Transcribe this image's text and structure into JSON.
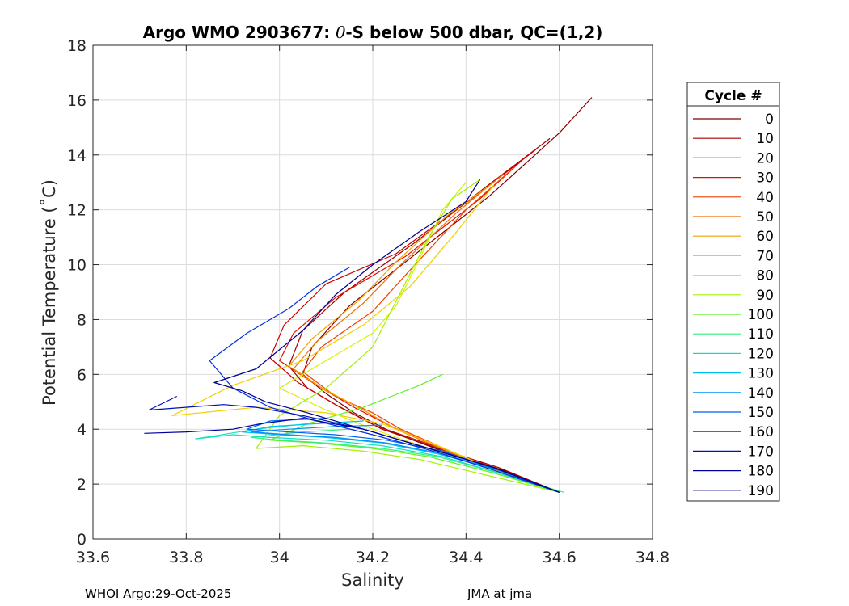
{
  "chart_data": {
    "type": "line",
    "title_prefix": "Argo WMO 2903677: ",
    "title_theta": "θ",
    "title_suffix": "-S below 500 dbar,  QC=(1,2)",
    "xlabel": "Salinity",
    "ylabel": "Potential Temperature (˚C)",
    "xlim": [
      33.6,
      34.8
    ],
    "ylim": [
      0,
      18
    ],
    "xticks": [
      "33.6",
      "33.8",
      "34",
      "34.2",
      "34.4",
      "34.6",
      "34.8"
    ],
    "yticks": [
      "0",
      "2",
      "4",
      "6",
      "8",
      "10",
      "12",
      "14",
      "16",
      "18"
    ],
    "grid": true,
    "legend_title": "Cycle #",
    "legend_position": "right-outside",
    "legend": [
      {
        "label": "0",
        "color": "#800000"
      },
      {
        "label": "10",
        "color": "#a00000"
      },
      {
        "label": "20",
        "color": "#c80000"
      },
      {
        "label": "30",
        "color": "#e01000"
      },
      {
        "label": "40",
        "color": "#f04000"
      },
      {
        "label": "50",
        "color": "#f07000"
      },
      {
        "label": "60",
        "color": "#f0a000"
      },
      {
        "label": "70",
        "color": "#f0d000"
      },
      {
        "label": "80",
        "color": "#d8f000"
      },
      {
        "label": "90",
        "color": "#a0f000"
      },
      {
        "label": "100",
        "color": "#60f020"
      },
      {
        "label": "110",
        "color": "#30f080"
      },
      {
        "label": "120",
        "color": "#10e0c0"
      },
      {
        "label": "130",
        "color": "#00c0f0"
      },
      {
        "label": "140",
        "color": "#0090f0"
      },
      {
        "label": "150",
        "color": "#0060f0"
      },
      {
        "label": "160",
        "color": "#0030e0"
      },
      {
        "label": "170",
        "color": "#0010c0"
      },
      {
        "label": "180",
        "color": "#0000a0"
      },
      {
        "label": "190",
        "color": "#000090"
      }
    ],
    "series": [
      {
        "name": "0",
        "color": "#800000",
        "x": [
          34.6,
          34.48,
          34.35,
          34.24,
          34.16,
          34.1,
          34.05,
          34.07,
          34.15,
          34.3,
          34.45,
          34.6,
          34.67
        ],
        "y": [
          1.7,
          2.5,
          3.2,
          3.9,
          4.6,
          5.3,
          6.0,
          7.0,
          8.5,
          10.5,
          12.5,
          14.8,
          16.1
        ]
      },
      {
        "name": "10",
        "color": "#a00000",
        "x": [
          34.6,
          34.47,
          34.34,
          34.22,
          34.13,
          34.06,
          34.02,
          34.05,
          34.14,
          34.29,
          34.44,
          34.58
        ],
        "y": [
          1.7,
          2.6,
          3.3,
          4.0,
          4.8,
          5.5,
          6.3,
          7.6,
          9.0,
          10.8,
          12.8,
          14.6
        ]
      },
      {
        "name": "20",
        "color": "#c80000",
        "x": [
          34.6,
          34.46,
          34.33,
          34.21,
          34.12,
          34.04,
          33.98,
          34.01,
          34.1,
          34.25,
          34.42,
          34.55
        ],
        "y": [
          1.7,
          2.6,
          3.4,
          4.1,
          4.9,
          5.7,
          6.6,
          7.8,
          9.3,
          10.4,
          12.5,
          14.2
        ]
      },
      {
        "name": "30",
        "color": "#e01000",
        "x": [
          34.6,
          34.47,
          34.35,
          34.24,
          34.16,
          34.08,
          34.0,
          34.03,
          34.12,
          34.27,
          34.43,
          34.52
        ],
        "y": [
          1.7,
          2.5,
          3.3,
          4.1,
          4.8,
          5.6,
          6.5,
          7.5,
          8.8,
          10.3,
          12.4,
          13.8
        ]
      },
      {
        "name": "40",
        "color": "#f04000",
        "x": [
          34.6,
          34.48,
          34.38,
          34.26,
          34.2,
          34.12,
          34.05,
          34.09,
          34.2,
          34.28,
          34.4,
          34.5
        ],
        "y": [
          1.7,
          2.4,
          3.1,
          4.0,
          4.6,
          5.2,
          6.1,
          7.0,
          8.3,
          9.8,
          12.0,
          13.5
        ]
      },
      {
        "name": "50",
        "color": "#f07000",
        "x": [
          34.6,
          34.47,
          34.36,
          34.25,
          34.18,
          34.1,
          34.03,
          34.08,
          34.18,
          34.26,
          34.38,
          34.48
        ],
        "y": [
          1.7,
          2.5,
          3.2,
          4.0,
          4.7,
          5.4,
          6.2,
          7.2,
          8.6,
          10.0,
          11.9,
          13.3
        ]
      },
      {
        "name": "60",
        "color": "#f0a000",
        "x": [
          34.6,
          34.46,
          34.35,
          34.24,
          34.17,
          34.09,
          34.02,
          34.07,
          34.17,
          34.25,
          34.36,
          34.46
        ],
        "y": [
          1.7,
          2.5,
          3.3,
          4.1,
          4.8,
          5.5,
          6.3,
          7.3,
          8.7,
          10.1,
          11.8,
          13.0
        ]
      },
      {
        "name": "70",
        "color": "#f0d000",
        "x": [
          34.6,
          34.45,
          34.34,
          34.22,
          34.1,
          33.95,
          33.77,
          33.9,
          34.05,
          34.18,
          34.28,
          34.38,
          34.46
        ],
        "y": [
          1.7,
          2.6,
          3.4,
          4.2,
          4.6,
          4.8,
          4.5,
          5.6,
          6.5,
          7.8,
          9.2,
          11.2,
          12.9
        ]
      },
      {
        "name": "80",
        "color": "#d8f000",
        "x": [
          34.6,
          34.44,
          34.32,
          34.2,
          34.1,
          34.0,
          34.08,
          34.2,
          34.25,
          34.3,
          34.35,
          34.4
        ],
        "y": [
          1.7,
          2.6,
          3.3,
          4.0,
          4.7,
          5.5,
          6.3,
          7.5,
          8.5,
          10.2,
          12.0,
          13.0
        ]
      },
      {
        "name": "90",
        "color": "#a0f000",
        "x": [
          34.6,
          34.45,
          34.3,
          34.18,
          34.05,
          33.95,
          34.0,
          34.1,
          34.2,
          34.26,
          34.32,
          34.37,
          34.43
        ],
        "y": [
          1.7,
          2.3,
          2.9,
          3.2,
          3.4,
          3.3,
          4.5,
          5.5,
          7.0,
          9.0,
          11.0,
          12.4,
          13.1
        ]
      },
      {
        "name": "100",
        "color": "#60f020",
        "x": [
          34.6,
          34.46,
          34.32,
          34.2,
          34.08,
          33.98,
          34.06,
          34.18,
          34.24,
          34.3,
          34.35
        ],
        "y": [
          1.7,
          2.4,
          3.0,
          3.3,
          3.5,
          3.6,
          4.2,
          4.8,
          5.2,
          5.6,
          6.0
        ]
      },
      {
        "name": "110",
        "color": "#30f080",
        "x": [
          34.61,
          34.47,
          34.34,
          34.22,
          34.1,
          34.0,
          33.94,
          34.05,
          34.15
        ],
        "y": [
          1.7,
          2.4,
          3.0,
          3.3,
          3.5,
          3.6,
          3.7,
          3.9,
          4.0
        ]
      },
      {
        "name": "120",
        "color": "#10e0c0",
        "x": [
          34.6,
          34.47,
          34.35,
          34.22,
          34.1,
          33.98,
          33.9,
          33.82,
          33.95,
          34.06
        ],
        "y": [
          1.7,
          2.4,
          3.0,
          3.4,
          3.6,
          3.7,
          3.8,
          3.65,
          4.0,
          4.2
        ]
      },
      {
        "name": "130",
        "color": "#00c0f0",
        "x": [
          34.6,
          34.47,
          34.34,
          34.22,
          34.1,
          34.0,
          33.92,
          33.98,
          34.08,
          34.18
        ],
        "y": [
          1.7,
          2.5,
          3.1,
          3.5,
          3.7,
          3.8,
          3.9,
          4.1,
          4.2,
          4.3
        ]
      },
      {
        "name": "140",
        "color": "#0090f0",
        "x": [
          34.6,
          34.47,
          34.35,
          34.23,
          34.12,
          34.02,
          33.94,
          34.02,
          34.12,
          34.22
        ],
        "y": [
          1.7,
          2.5,
          3.1,
          3.5,
          3.7,
          3.8,
          3.9,
          4.0,
          4.1,
          4.15
        ]
      },
      {
        "name": "150",
        "color": "#0060f0",
        "x": [
          34.6,
          34.47,
          34.35,
          34.23,
          34.12,
          34.02,
          33.93,
          33.98,
          34.1
        ],
        "y": [
          1.7,
          2.5,
          3.2,
          3.6,
          3.8,
          3.9,
          4.0,
          4.3,
          4.4
        ]
      },
      {
        "name": "160",
        "color": "#0030e0",
        "x": [
          34.6,
          34.46,
          34.33,
          34.2,
          34.08,
          33.98,
          33.9,
          33.85,
          33.93,
          34.02,
          34.08,
          34.15
        ],
        "y": [
          1.7,
          2.5,
          3.2,
          3.8,
          4.3,
          4.8,
          5.5,
          6.5,
          7.5,
          8.4,
          9.2,
          9.9
        ]
      },
      {
        "name": "170",
        "color": "#0010c0",
        "x": [
          34.6,
          34.46,
          34.32,
          34.18,
          34.05,
          33.95,
          33.88,
          33.72,
          33.78
        ],
        "y": [
          1.7,
          2.6,
          3.3,
          4.0,
          4.5,
          4.8,
          4.9,
          4.7,
          5.2
        ]
      },
      {
        "name": "180",
        "color": "#0000a0",
        "x": [
          34.6,
          34.46,
          34.32,
          34.18,
          34.05,
          33.96,
          33.9,
          33.8,
          33.71
        ],
        "y": [
          1.7,
          2.6,
          3.3,
          4.0,
          4.4,
          4.2,
          4.0,
          3.9,
          3.85
        ]
      },
      {
        "name": "190",
        "color": "#000090",
        "x": [
          34.6,
          34.46,
          34.32,
          34.18,
          34.06,
          33.97,
          33.92,
          33.86,
          33.95,
          34.05,
          34.12,
          34.2,
          34.3,
          34.4,
          34.43
        ],
        "y": [
          1.7,
          2.6,
          3.3,
          4.0,
          4.6,
          5.0,
          5.4,
          5.7,
          6.2,
          7.6,
          8.9,
          10.0,
          11.2,
          12.3,
          13.1
        ]
      }
    ]
  },
  "footer": {
    "left": "WHOI Argo:29-Oct-2025",
    "right": "JMA at jma"
  }
}
